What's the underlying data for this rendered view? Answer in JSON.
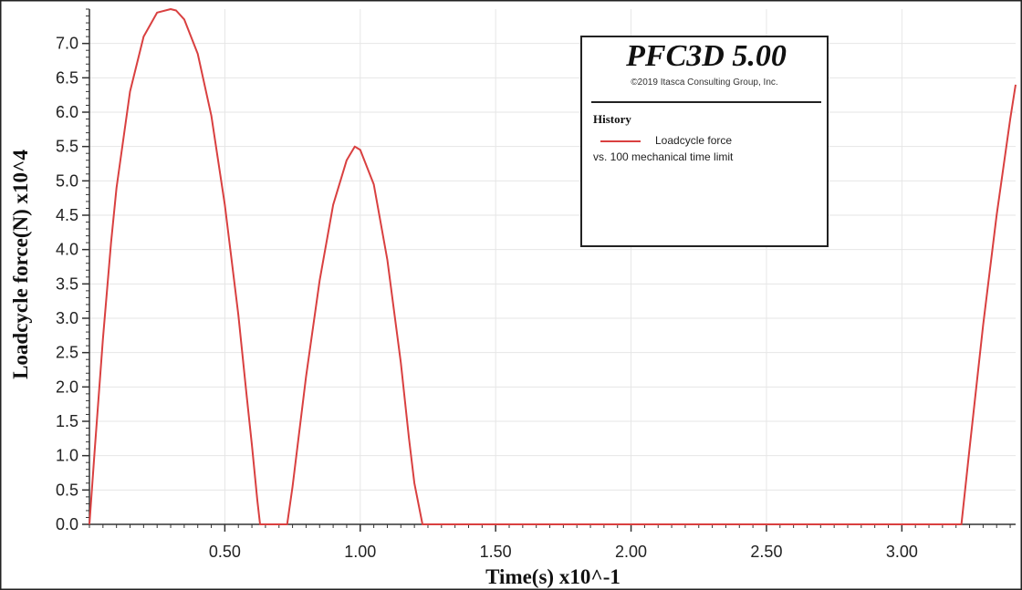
{
  "chart_data": {
    "type": "line",
    "title": "",
    "xlabel": "Time(s) x10^-1",
    "ylabel": "Loadcycle force(N) x10^4",
    "xlim": [
      0,
      3.42
    ],
    "ylim": [
      0,
      7.5
    ],
    "x_ticks": [
      0.5,
      1.0,
      1.5,
      2.0,
      2.5,
      3.0
    ],
    "x_tick_labels": [
      "0.50",
      "1.00",
      "1.50",
      "2.00",
      "2.50",
      "3.00"
    ],
    "y_ticks": [
      0.0,
      0.5,
      1.0,
      1.5,
      2.0,
      2.5,
      3.0,
      3.5,
      4.0,
      4.5,
      5.0,
      5.5,
      6.0,
      6.5,
      7.0
    ],
    "y_tick_labels": [
      "0.0",
      "0.5",
      "1.0",
      "1.5",
      "2.0",
      "2.5",
      "3.0",
      "3.5",
      "4.0",
      "4.5",
      "5.0",
      "5.5",
      "6.0",
      "6.5",
      "7.0"
    ],
    "grid": true,
    "legend_position": "top-right",
    "series": [
      {
        "name": "Loadcycle force",
        "color": "#d94040",
        "x": [
          0.0,
          0.02,
          0.05,
          0.08,
          0.1,
          0.15,
          0.2,
          0.25,
          0.3,
          0.32,
          0.35,
          0.4,
          0.45,
          0.5,
          0.55,
          0.58,
          0.6,
          0.62,
          0.63,
          0.68,
          0.73,
          0.75,
          0.8,
          0.85,
          0.9,
          0.95,
          0.98,
          1.0,
          1.05,
          1.1,
          1.15,
          1.18,
          1.2,
          1.23,
          1.5,
          2.0,
          2.5,
          3.0,
          3.22,
          3.25,
          3.3,
          3.35,
          3.4,
          3.42
        ],
        "y": [
          0.0,
          1.1,
          2.7,
          4.1,
          4.9,
          6.3,
          7.1,
          7.45,
          7.5,
          7.48,
          7.35,
          6.85,
          5.95,
          4.65,
          3.05,
          1.9,
          1.15,
          0.35,
          0.0,
          0.0,
          0.0,
          0.55,
          2.15,
          3.55,
          4.65,
          5.3,
          5.5,
          5.45,
          4.95,
          3.85,
          2.35,
          1.25,
          0.6,
          0.0,
          0.0,
          0.0,
          0.0,
          0.0,
          0.0,
          1.1,
          2.9,
          4.5,
          5.9,
          6.4
        ]
      }
    ]
  },
  "legend": {
    "title": "PFC3D 5.00",
    "copyright": "©2019 Itasca Consulting Group, Inc.",
    "section": "History",
    "line1": "Loadcycle force",
    "line2": "vs.  100 mechanical time limit"
  }
}
